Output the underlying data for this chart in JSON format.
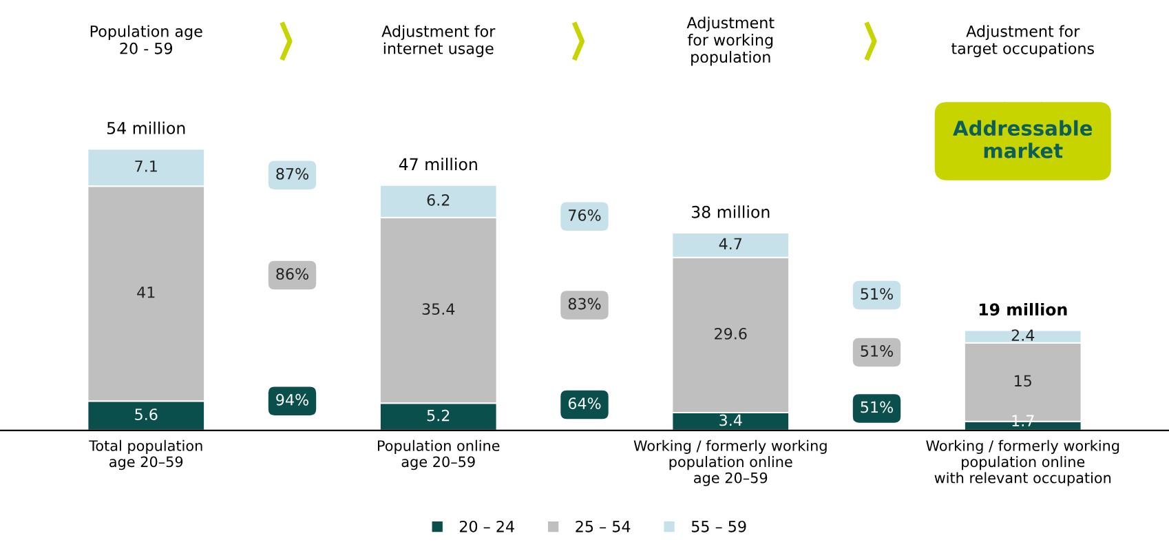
{
  "chart_data": {
    "type": "bar",
    "stacked": true,
    "data_labels": true,
    "legend": "bottom",
    "grid": false,
    "categories": [
      "Total population\nage 20–59",
      "Population online\nage 20–59",
      "Working / formerly working\npopulation online\nage 20–59",
      "Working / formerly working\npopulation online\nwith relevant occupation"
    ],
    "series": [
      {
        "name": "20 – 24",
        "color": "#0b4f4c",
        "values": [
          5.6,
          5.2,
          3.4,
          1.7
        ]
      },
      {
        "name": "25 – 54",
        "color": "#bfbfbf",
        "values": [
          41,
          35.4,
          29.6,
          15
        ]
      },
      {
        "name": "55 – 59",
        "color": "#c6e1ea",
        "values": [
          7.1,
          6.2,
          4.7,
          2.4
        ]
      }
    ],
    "totals": [
      "54 million",
      "47 million",
      "38 million",
      "19 million"
    ],
    "annotations": [
      "Population age\n20 - 59",
      "Adjustment for\ninternet usage",
      "Adjustment\nfor working\npopulation",
      "Adjustment for\ntarget occupations",
      "Addressable\nmarket",
      "87%",
      "86%",
      "94%",
      "76%",
      "83%",
      "64%",
      "51%",
      "51%",
      "51%"
    ]
  }
}
